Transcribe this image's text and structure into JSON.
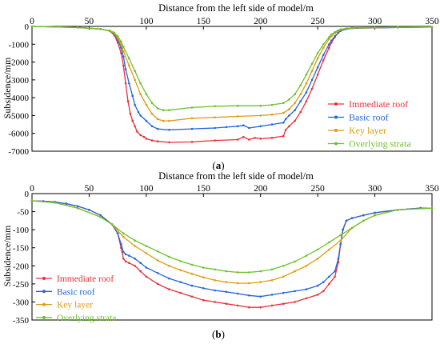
{
  "chart_data": [
    {
      "panel_label": "(a)",
      "panel_letter": "a",
      "type": "line",
      "xlabel": "Distance from the left side of model/m",
      "ylabel": "Subsidence/mm",
      "xlim": [
        0,
        350
      ],
      "ylim": [
        -7000,
        0
      ],
      "x_ticks": [
        0,
        50,
        100,
        150,
        200,
        250,
        300,
        350
      ],
      "y_ticks": [
        0,
        -1000,
        -2000,
        -3000,
        -4000,
        -5000,
        -6000,
        -7000
      ],
      "x_axis_position": "top",
      "legend_position": "right",
      "grid": false,
      "series": [
        {
          "name": "Immediate roof",
          "color": "#e8303c",
          "x": [
            0,
            40,
            60,
            68,
            72,
            75,
            78,
            80,
            82,
            84,
            86,
            88,
            90,
            92,
            95,
            98,
            100,
            105,
            110,
            120,
            140,
            160,
            180,
            185,
            190,
            195,
            200,
            210,
            220,
            222,
            225,
            230,
            235,
            240,
            245,
            250,
            255,
            260,
            262,
            265,
            268,
            270,
            275,
            280,
            300,
            320,
            350
          ],
          "y": [
            0,
            -60,
            -150,
            -250,
            -500,
            -900,
            -1500,
            -2200,
            -3200,
            -4200,
            -4900,
            -5300,
            -5600,
            -5900,
            -6100,
            -6200,
            -6300,
            -6400,
            -6450,
            -6500,
            -6480,
            -6400,
            -6350,
            -6200,
            -6350,
            -6250,
            -6300,
            -6250,
            -6150,
            -5800,
            -5600,
            -5300,
            -4800,
            -4200,
            -3500,
            -2700,
            -1900,
            -1200,
            -900,
            -600,
            -350,
            -250,
            -150,
            -100,
            -80,
            -60,
            -40
          ]
        },
        {
          "name": "Basic roof",
          "color": "#2266dd",
          "x": [
            0,
            40,
            60,
            68,
            72,
            75,
            78,
            80,
            82,
            85,
            88,
            90,
            93,
            95,
            100,
            105,
            110,
            120,
            140,
            160,
            170,
            180,
            185,
            190,
            200,
            210,
            220,
            222,
            225,
            230,
            235,
            240,
            245,
            250,
            255,
            260,
            262,
            265,
            268,
            270,
            275,
            280,
            300,
            320,
            350
          ],
          "y": [
            0,
            -60,
            -150,
            -250,
            -450,
            -750,
            -1200,
            -1700,
            -2400,
            -3200,
            -3900,
            -4400,
            -4800,
            -5000,
            -5300,
            -5600,
            -5750,
            -5800,
            -5750,
            -5700,
            -5650,
            -5600,
            -5550,
            -5700,
            -5600,
            -5500,
            -5400,
            -5200,
            -5000,
            -4700,
            -4200,
            -3700,
            -3000,
            -2300,
            -1600,
            -1000,
            -800,
            -550,
            -350,
            -250,
            -150,
            -100,
            -80,
            -60,
            -40
          ]
        },
        {
          "name": "Key layer",
          "color": "#e09a10",
          "x": [
            0,
            40,
            60,
            68,
            72,
            75,
            78,
            80,
            85,
            90,
            95,
            100,
            105,
            110,
            115,
            120,
            140,
            160,
            180,
            200,
            210,
            220,
            225,
            230,
            235,
            240,
            245,
            250,
            255,
            260,
            262,
            265,
            268,
            270,
            275,
            280,
            300,
            320,
            350
          ],
          "y": [
            0,
            -60,
            -150,
            -250,
            -400,
            -650,
            -1000,
            -1400,
            -2200,
            -3000,
            -3800,
            -4400,
            -4900,
            -5200,
            -5300,
            -5300,
            -5150,
            -5100,
            -5050,
            -5000,
            -4950,
            -4850,
            -4650,
            -4300,
            -3800,
            -3200,
            -2500,
            -1800,
            -1200,
            -700,
            -550,
            -380,
            -250,
            -200,
            -120,
            -90,
            -70,
            -50,
            -30
          ]
        },
        {
          "name": "Overlying strata",
          "color": "#6cc12c",
          "x": [
            0,
            40,
            60,
            68,
            72,
            75,
            78,
            80,
            85,
            90,
            95,
            100,
            105,
            110,
            115,
            120,
            140,
            160,
            180,
            200,
            210,
            220,
            225,
            230,
            235,
            240,
            245,
            250,
            255,
            260,
            262,
            265,
            268,
            270,
            275,
            280,
            300,
            320,
            350
          ],
          "y": [
            0,
            -60,
            -150,
            -230,
            -350,
            -550,
            -850,
            -1150,
            -1800,
            -2500,
            -3200,
            -3800,
            -4300,
            -4600,
            -4700,
            -4700,
            -4550,
            -4480,
            -4450,
            -4450,
            -4400,
            -4300,
            -4100,
            -3800,
            -3300,
            -2700,
            -2100,
            -1500,
            -1000,
            -600,
            -450,
            -320,
            -220,
            -170,
            -110,
            -80,
            -60,
            -40,
            -30
          ]
        }
      ]
    },
    {
      "panel_label": "(b)",
      "panel_letter": "b",
      "type": "line",
      "xlabel": "Distance from the left side of model/m",
      "ylabel": "Subsidence/mm",
      "xlim": [
        0,
        350
      ],
      "ylim": [
        -350,
        0
      ],
      "x_ticks": [
        0,
        50,
        100,
        150,
        200,
        250,
        300,
        350
      ],
      "y_ticks": [
        0,
        -50,
        -100,
        -150,
        -200,
        -250,
        -300,
        -350
      ],
      "x_axis_position": "top",
      "legend_position": "bottom-left",
      "grid": false,
      "series": [
        {
          "name": "Immediate roof",
          "color": "#e8303c",
          "x": [
            0,
            10,
            20,
            30,
            40,
            50,
            60,
            70,
            75,
            78,
            80,
            82,
            85,
            90,
            95,
            100,
            110,
            120,
            130,
            140,
            150,
            160,
            170,
            180,
            190,
            200,
            210,
            220,
            230,
            240,
            250,
            255,
            260,
            265,
            268,
            270,
            272,
            275,
            280,
            290,
            300,
            320,
            340,
            350
          ],
          "y": [
            -20,
            -21,
            -23,
            -28,
            -35,
            -45,
            -60,
            -85,
            -110,
            -150,
            -180,
            -188,
            -192,
            -200,
            -215,
            -230,
            -250,
            -265,
            -275,
            -285,
            -295,
            -300,
            -305,
            -310,
            -315,
            -315,
            -310,
            -305,
            -300,
            -290,
            -280,
            -270,
            -250,
            -230,
            -190,
            -140,
            -100,
            -75,
            -68,
            -60,
            -53,
            -45,
            -40,
            -40
          ]
        },
        {
          "name": "Basic roof",
          "color": "#2266dd",
          "x": [
            0,
            10,
            20,
            30,
            40,
            50,
            60,
            70,
            75,
            78,
            80,
            82,
            85,
            90,
            95,
            100,
            110,
            120,
            130,
            140,
            150,
            160,
            170,
            180,
            190,
            200,
            210,
            220,
            230,
            240,
            250,
            255,
            260,
            265,
            268,
            270,
            272,
            275,
            280,
            290,
            300,
            320,
            340,
            350
          ],
          "y": [
            -20,
            -21,
            -23,
            -28,
            -35,
            -45,
            -60,
            -85,
            -110,
            -140,
            -162,
            -168,
            -172,
            -180,
            -192,
            -205,
            -220,
            -235,
            -245,
            -255,
            -262,
            -268,
            -272,
            -277,
            -282,
            -285,
            -280,
            -275,
            -270,
            -265,
            -255,
            -245,
            -230,
            -215,
            -180,
            -140,
            -100,
            -75,
            -68,
            -60,
            -53,
            -45,
            -40,
            -40
          ]
        },
        {
          "name": "Key layer",
          "color": "#e09a10",
          "x": [
            0,
            20,
            40,
            60,
            70,
            80,
            90,
            100,
            110,
            120,
            130,
            140,
            150,
            160,
            170,
            180,
            190,
            200,
            210,
            220,
            230,
            240,
            250,
            260,
            270,
            280,
            290,
            300,
            320,
            350
          ],
          "y": [
            -20,
            -25,
            -40,
            -65,
            -85,
            -120,
            -145,
            -165,
            -185,
            -200,
            -212,
            -222,
            -232,
            -240,
            -245,
            -248,
            -248,
            -245,
            -240,
            -230,
            -215,
            -200,
            -180,
            -155,
            -130,
            -95,
            -75,
            -60,
            -45,
            -40
          ]
        },
        {
          "name": "Overlying strata",
          "color": "#6cc12c",
          "x": [
            0,
            20,
            40,
            60,
            70,
            80,
            90,
            100,
            110,
            120,
            130,
            140,
            150,
            160,
            170,
            180,
            190,
            200,
            210,
            220,
            230,
            240,
            250,
            260,
            270,
            280,
            290,
            300,
            320,
            350
          ],
          "y": [
            -20,
            -25,
            -40,
            -65,
            -85,
            -110,
            -130,
            -145,
            -160,
            -175,
            -187,
            -197,
            -205,
            -210,
            -215,
            -218,
            -218,
            -215,
            -210,
            -200,
            -188,
            -172,
            -155,
            -135,
            -115,
            -95,
            -75,
            -60,
            -45,
            -40
          ]
        }
      ]
    }
  ]
}
